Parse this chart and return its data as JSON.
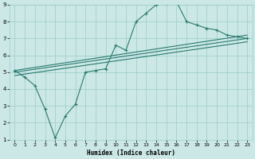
{
  "xlabel": "Humidex (Indice chaleur)",
  "xlim": [
    -0.5,
    23.5
  ],
  "ylim": [
    1,
    9
  ],
  "xticks": [
    0,
    1,
    2,
    3,
    4,
    5,
    6,
    7,
    8,
    9,
    10,
    11,
    12,
    13,
    14,
    15,
    16,
    17,
    18,
    19,
    20,
    21,
    22,
    23
  ],
  "yticks": [
    1,
    2,
    3,
    4,
    5,
    6,
    7,
    8,
    9
  ],
  "bg_color": "#cce8e6",
  "grid_color": "#99ccca",
  "line_color": "#2a7a6f",
  "line1_x": [
    0,
    1,
    2,
    3,
    4,
    5,
    6,
    7,
    8,
    9,
    10,
    11,
    12,
    13,
    14,
    15,
    16,
    17,
    18,
    19,
    20,
    21,
    22,
    23
  ],
  "line1_y": [
    5.1,
    4.7,
    4.2,
    2.8,
    1.1,
    2.4,
    3.1,
    5.0,
    5.1,
    5.2,
    6.6,
    6.3,
    8.0,
    8.5,
    9.0,
    9.1,
    9.2,
    8.0,
    7.8,
    7.6,
    7.5,
    7.2,
    7.1,
    7.0
  ],
  "line2_x": [
    0,
    23
  ],
  "line2_y": [
    5.1,
    7.2
  ],
  "line3_x": [
    0,
    23
  ],
  "line3_y": [
    5.0,
    7.0
  ],
  "line4_x": [
    0,
    23
  ],
  "line4_y": [
    4.8,
    6.8
  ]
}
